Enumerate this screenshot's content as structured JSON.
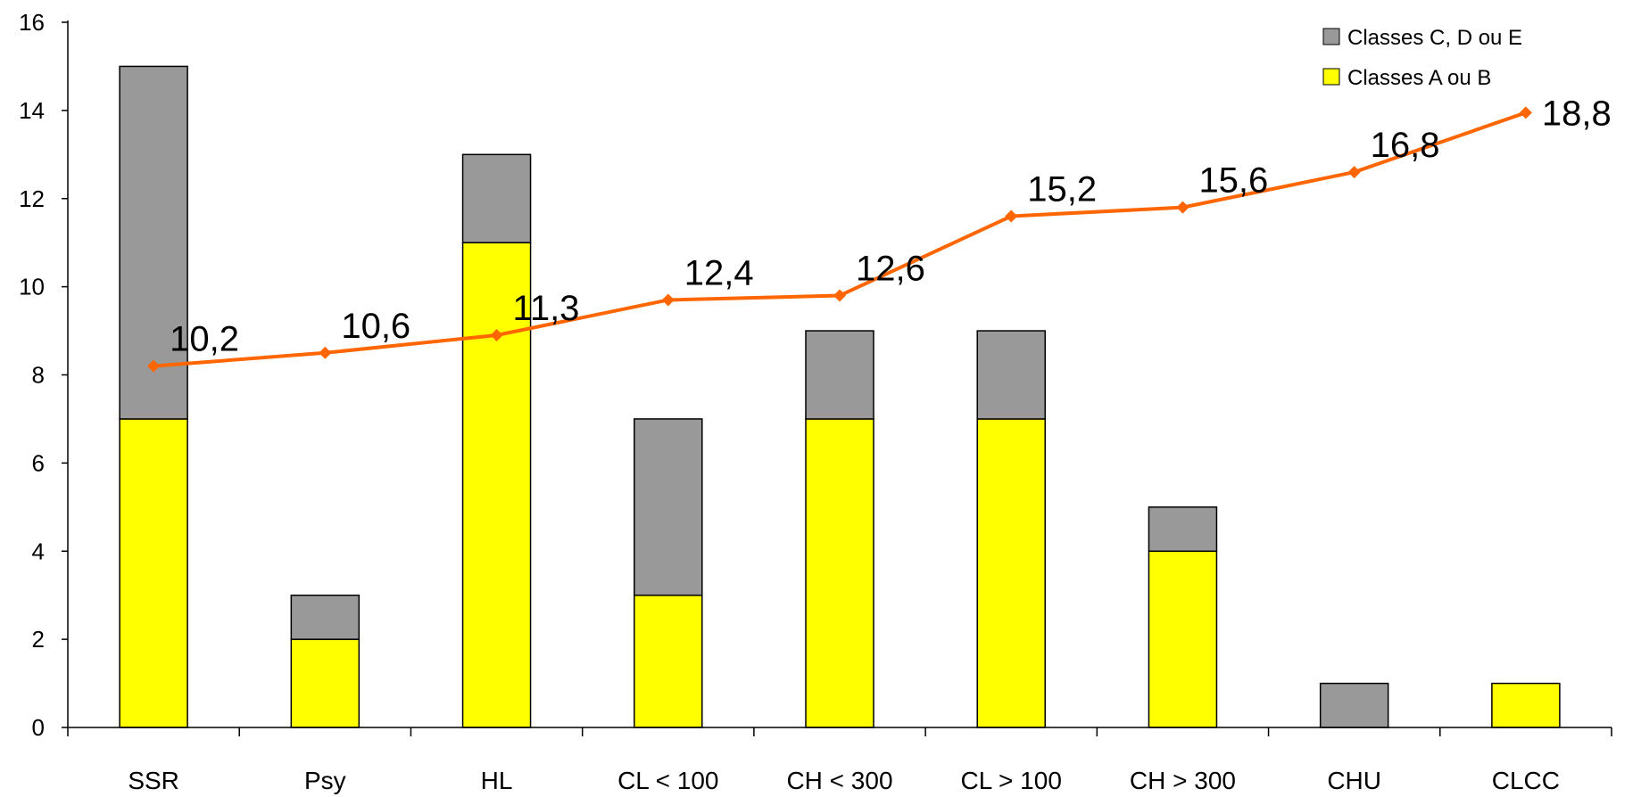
{
  "chart_data": {
    "type": "bar",
    "stacked": true,
    "categories": [
      "SSR",
      "Psy",
      "HL",
      "CL < 100",
      "CH < 300",
      "CL > 100",
      "CH > 300",
      "CHU",
      "CLCC"
    ],
    "series": [
      {
        "name": "Classes A ou B",
        "kind": "bar",
        "color": "#ffff00",
        "values": [
          7,
          2,
          11,
          3,
          7,
          7,
          4,
          0,
          1
        ]
      },
      {
        "name": "Classes C, D ou E",
        "kind": "bar",
        "color": "#999999",
        "values": [
          8,
          1,
          2,
          4,
          2,
          2,
          1,
          1,
          0
        ]
      },
      {
        "kind": "line",
        "color": "#ff6600",
        "values": [
          8.2,
          8.5,
          8.9,
          9.7,
          9.8,
          11.6,
          11.8,
          12.6,
          13.95
        ],
        "labels": [
          "10,2",
          "10,6",
          "11,3",
          "12,4",
          "12,6",
          "15,2",
          "15,6",
          "16,8",
          "18,8"
        ]
      }
    ],
    "ylim": [
      0,
      16
    ],
    "yticks": [
      0,
      2,
      4,
      6,
      8,
      10,
      12,
      14,
      16
    ],
    "legend": {
      "position": "top-right",
      "entries": [
        {
          "label": "Classes C, D ou E",
          "color": "#999999"
        },
        {
          "label": "Classes A ou B",
          "color": "#ffff00"
        }
      ]
    },
    "grid": false
  }
}
